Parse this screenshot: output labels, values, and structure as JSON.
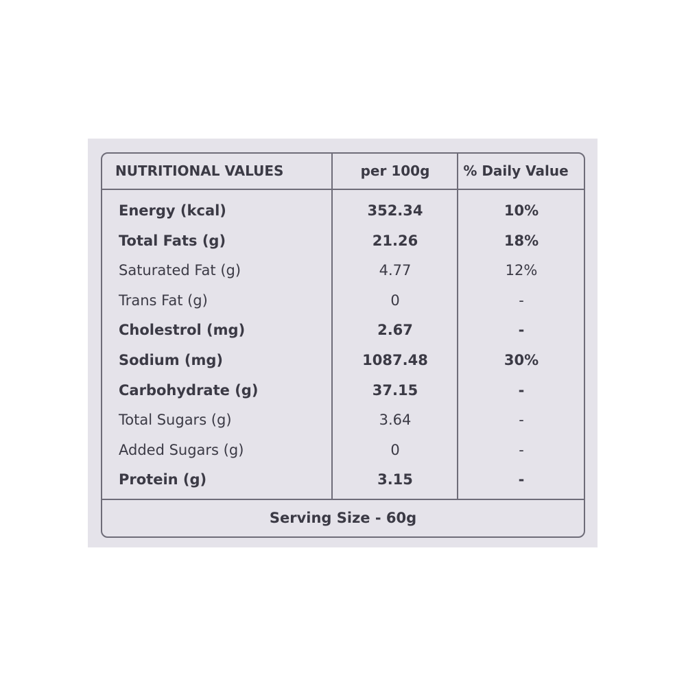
{
  "table": {
    "header": [
      "NUTRITIONAL VALUES",
      "per 100g",
      "% Daily Value"
    ],
    "rows": [
      [
        "Energy (kcal)",
        "352.34",
        "10%"
      ],
      [
        "Total Fats (g)",
        "21.26",
        "18%"
      ],
      [
        "Saturated Fat (g)",
        "4.77",
        "12%"
      ],
      [
        "Trans Fat (g)",
        "0",
        "-"
      ],
      [
        "Cholestrol (mg)",
        "2.67",
        "-"
      ],
      [
        "Sodium (mg)",
        "1087.48",
        "30%"
      ],
      [
        "Carbohydrate (g)",
        "37.15",
        "-"
      ],
      [
        "Total Sugars (g)",
        "3.64",
        "-"
      ],
      [
        "Added Sugars  (g)",
        "0",
        "-"
      ],
      [
        "Protein (g)",
        "3.15",
        "-"
      ]
    ],
    "footer": "Serving Size - 60g"
  }
}
